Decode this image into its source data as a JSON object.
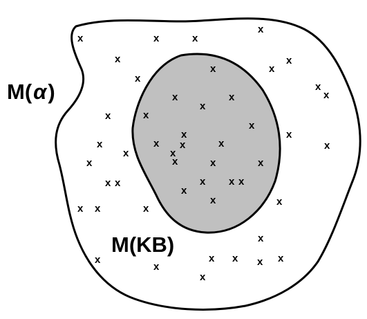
{
  "labels": {
    "outer_prefix": "M(",
    "outer_suffix": ")",
    "inner": "M(KB)"
  },
  "marker": "x",
  "colors": {
    "outline": "#000000",
    "outer_fill": "#ffffff",
    "inner_fill": "#c0c0c0"
  },
  "outer_region": {
    "name": "M(α)",
    "marker_count": 32
  },
  "inner_region": {
    "name": "M(KB)",
    "marker_count": 21
  }
}
